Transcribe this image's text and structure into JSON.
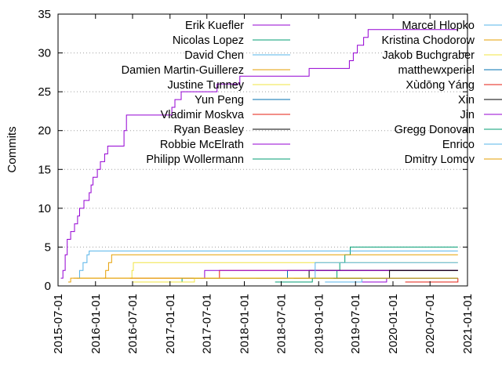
{
  "chart_data": {
    "type": "line",
    "ylabel": "Commits",
    "xlabel": "",
    "ylim": [
      0,
      35
    ],
    "xlim": [
      "2015-07-01",
      "2021-01-01"
    ],
    "grid": "horizontal dotted",
    "legend_placement": "top, two columns",
    "y_ticks": [
      0,
      5,
      10,
      15,
      20,
      25,
      30,
      35
    ],
    "x_ticks": [
      "2015-07-01",
      "2016-01-01",
      "2016-07-01",
      "2017-01-01",
      "2017-07-01",
      "2018-01-01",
      "2018-07-01",
      "2019-01-01",
      "2019-07-01",
      "2020-01-01",
      "2020-07-01",
      "2021-01-01"
    ],
    "series": [
      {
        "name": "Erik Kuefler",
        "color": "#9400d3",
        "points": [
          [
            "2015-07-15",
            1
          ],
          [
            "2015-07-25",
            2
          ],
          [
            "2015-08-05",
            4
          ],
          [
            "2015-08-15",
            6
          ],
          [
            "2015-09-01",
            7
          ],
          [
            "2015-09-20",
            8
          ],
          [
            "2015-10-05",
            9
          ],
          [
            "2015-10-15",
            10
          ],
          [
            "2015-11-05",
            11
          ],
          [
            "2015-12-01",
            12
          ],
          [
            "2015-12-10",
            13
          ],
          [
            "2015-12-20",
            14
          ],
          [
            "2016-01-10",
            15
          ],
          [
            "2016-01-25",
            16
          ],
          [
            "2016-02-15",
            17
          ],
          [
            "2016-03-01",
            18
          ],
          [
            "2016-05-20",
            20
          ],
          [
            "2016-06-01",
            22
          ],
          [
            "2017-01-10",
            23
          ],
          [
            "2017-01-25",
            24
          ],
          [
            "2017-02-25",
            25
          ],
          [
            "2017-08-20",
            26
          ],
          [
            "2017-12-10",
            27
          ],
          [
            "2018-11-15",
            28
          ],
          [
            "2019-06-01",
            29
          ],
          [
            "2019-06-20",
            30
          ],
          [
            "2019-07-10",
            31
          ],
          [
            "2019-08-10",
            32
          ],
          [
            "2019-09-01",
            33
          ],
          [
            "2020-11-15",
            33
          ]
        ]
      },
      {
        "name": "Nicolas Lopez",
        "color": "#009e73",
        "points": [
          [
            "2019-03-01",
            1
          ],
          [
            "2019-04-01",
            2
          ],
          [
            "2019-04-15",
            3
          ],
          [
            "2019-05-10",
            4
          ],
          [
            "2019-06-05",
            5
          ],
          [
            "2020-11-15",
            5
          ]
        ]
      },
      {
        "name": "David Chen",
        "color": "#56b4e9",
        "points": [
          [
            "2015-10-01",
            1
          ],
          [
            "2015-10-15",
            2
          ],
          [
            "2015-11-01",
            3
          ],
          [
            "2015-11-20",
            4
          ],
          [
            "2015-12-01",
            4.5
          ],
          [
            "2020-11-15",
            4.5
          ]
        ]
      },
      {
        "name": "Damien Martin-Guillerez",
        "color": "#e69f00",
        "points": [
          [
            "2016-02-10",
            1
          ],
          [
            "2016-02-20",
            2
          ],
          [
            "2016-03-05",
            3
          ],
          [
            "2016-03-20",
            4
          ],
          [
            "2020-11-15",
            4
          ]
        ]
      },
      {
        "name": "Justine Tunney",
        "color": "#f0e442",
        "points": [
          [
            "2016-06-15",
            1
          ],
          [
            "2016-06-28",
            2
          ],
          [
            "2016-07-05",
            3
          ],
          [
            "2020-11-15",
            3
          ]
        ]
      },
      {
        "name": "Yun Peng",
        "color": "#0072b2",
        "points": [
          [
            "2018-03-01",
            1
          ],
          [
            "2018-08-01",
            2
          ],
          [
            "2020-11-15",
            2
          ]
        ]
      },
      {
        "name": "Vladimir Moskva",
        "color": "#e51e10",
        "points": [
          [
            "2016-06-20",
            1
          ],
          [
            "2016-12-01",
            1
          ],
          [
            "2017-09-01",
            2
          ],
          [
            "2020-11-15",
            2
          ]
        ]
      },
      {
        "name": "Ryan Beasley",
        "color": "#000000",
        "points": [
          [
            "2018-09-01",
            1
          ],
          [
            "2018-11-15",
            2
          ],
          [
            "2020-11-15",
            2
          ]
        ]
      },
      {
        "name": "Robbie McElrath",
        "color": "#9400d3",
        "points": [
          [
            "2017-06-01",
            1
          ],
          [
            "2017-06-20",
            2
          ],
          [
            "2020-11-15",
            2
          ]
        ]
      },
      {
        "name": "Philipp Wollermann",
        "color": "#009e73",
        "points": [
          [
            "2016-08-15",
            0.5
          ],
          [
            "2017-03-01",
            1
          ],
          [
            "2020-11-15",
            1
          ]
        ]
      },
      {
        "name": "Marcel Hlopko",
        "color": "#56b4e9",
        "points": [
          [
            "2017-07-01",
            1
          ],
          [
            "2018-12-15",
            3
          ],
          [
            "2020-11-15",
            3
          ]
        ]
      },
      {
        "name": "Kristina Chodorow",
        "color": "#e69f00",
        "points": [
          [
            "2015-08-20",
            0.5
          ],
          [
            "2015-09-01",
            1
          ],
          [
            "2020-11-15",
            1
          ]
        ]
      },
      {
        "name": "Jakob Buchgraber",
        "color": "#f0e442",
        "points": [
          [
            "2016-07-01",
            0.5
          ],
          [
            "2017-05-01",
            1
          ],
          [
            "2020-11-15",
            1
          ]
        ]
      },
      {
        "name": "matthewxperiel",
        "color": "#0072b2",
        "points": [
          [
            "2019-04-01",
            1
          ],
          [
            "2020-11-15",
            1
          ]
        ]
      },
      {
        "name": "Xùdōng Yáng",
        "color": "#e51e10",
        "points": [
          [
            "2020-03-01",
            0.5
          ],
          [
            "2020-11-15",
            1
          ]
        ]
      },
      {
        "name": "Xin",
        "color": "#000000",
        "points": [
          [
            "2019-03-15",
            1
          ],
          [
            "2019-12-15",
            2
          ],
          [
            "2020-11-15",
            2
          ]
        ]
      },
      {
        "name": "Jin",
        "color": "#9400d3",
        "points": [
          [
            "2019-08-01",
            0.5
          ],
          [
            "2019-12-01",
            1
          ],
          [
            "2020-11-15",
            1
          ]
        ]
      },
      {
        "name": "Gregg Donovan",
        "color": "#009e73",
        "points": [
          [
            "2018-06-01",
            0.5
          ],
          [
            "2018-12-01",
            1
          ],
          [
            "2020-11-15",
            1
          ]
        ]
      },
      {
        "name": "Enrico",
        "color": "#56b4e9",
        "points": [
          [
            "2019-02-01",
            0.5
          ],
          [
            "2019-08-01",
            1
          ],
          [
            "2020-11-15",
            1
          ]
        ]
      },
      {
        "name": "Dmitry Lomov",
        "color": "#e69f00",
        "points": [
          [
            "2015-09-15",
            1
          ],
          [
            "2020-11-15",
            1
          ]
        ]
      }
    ]
  }
}
